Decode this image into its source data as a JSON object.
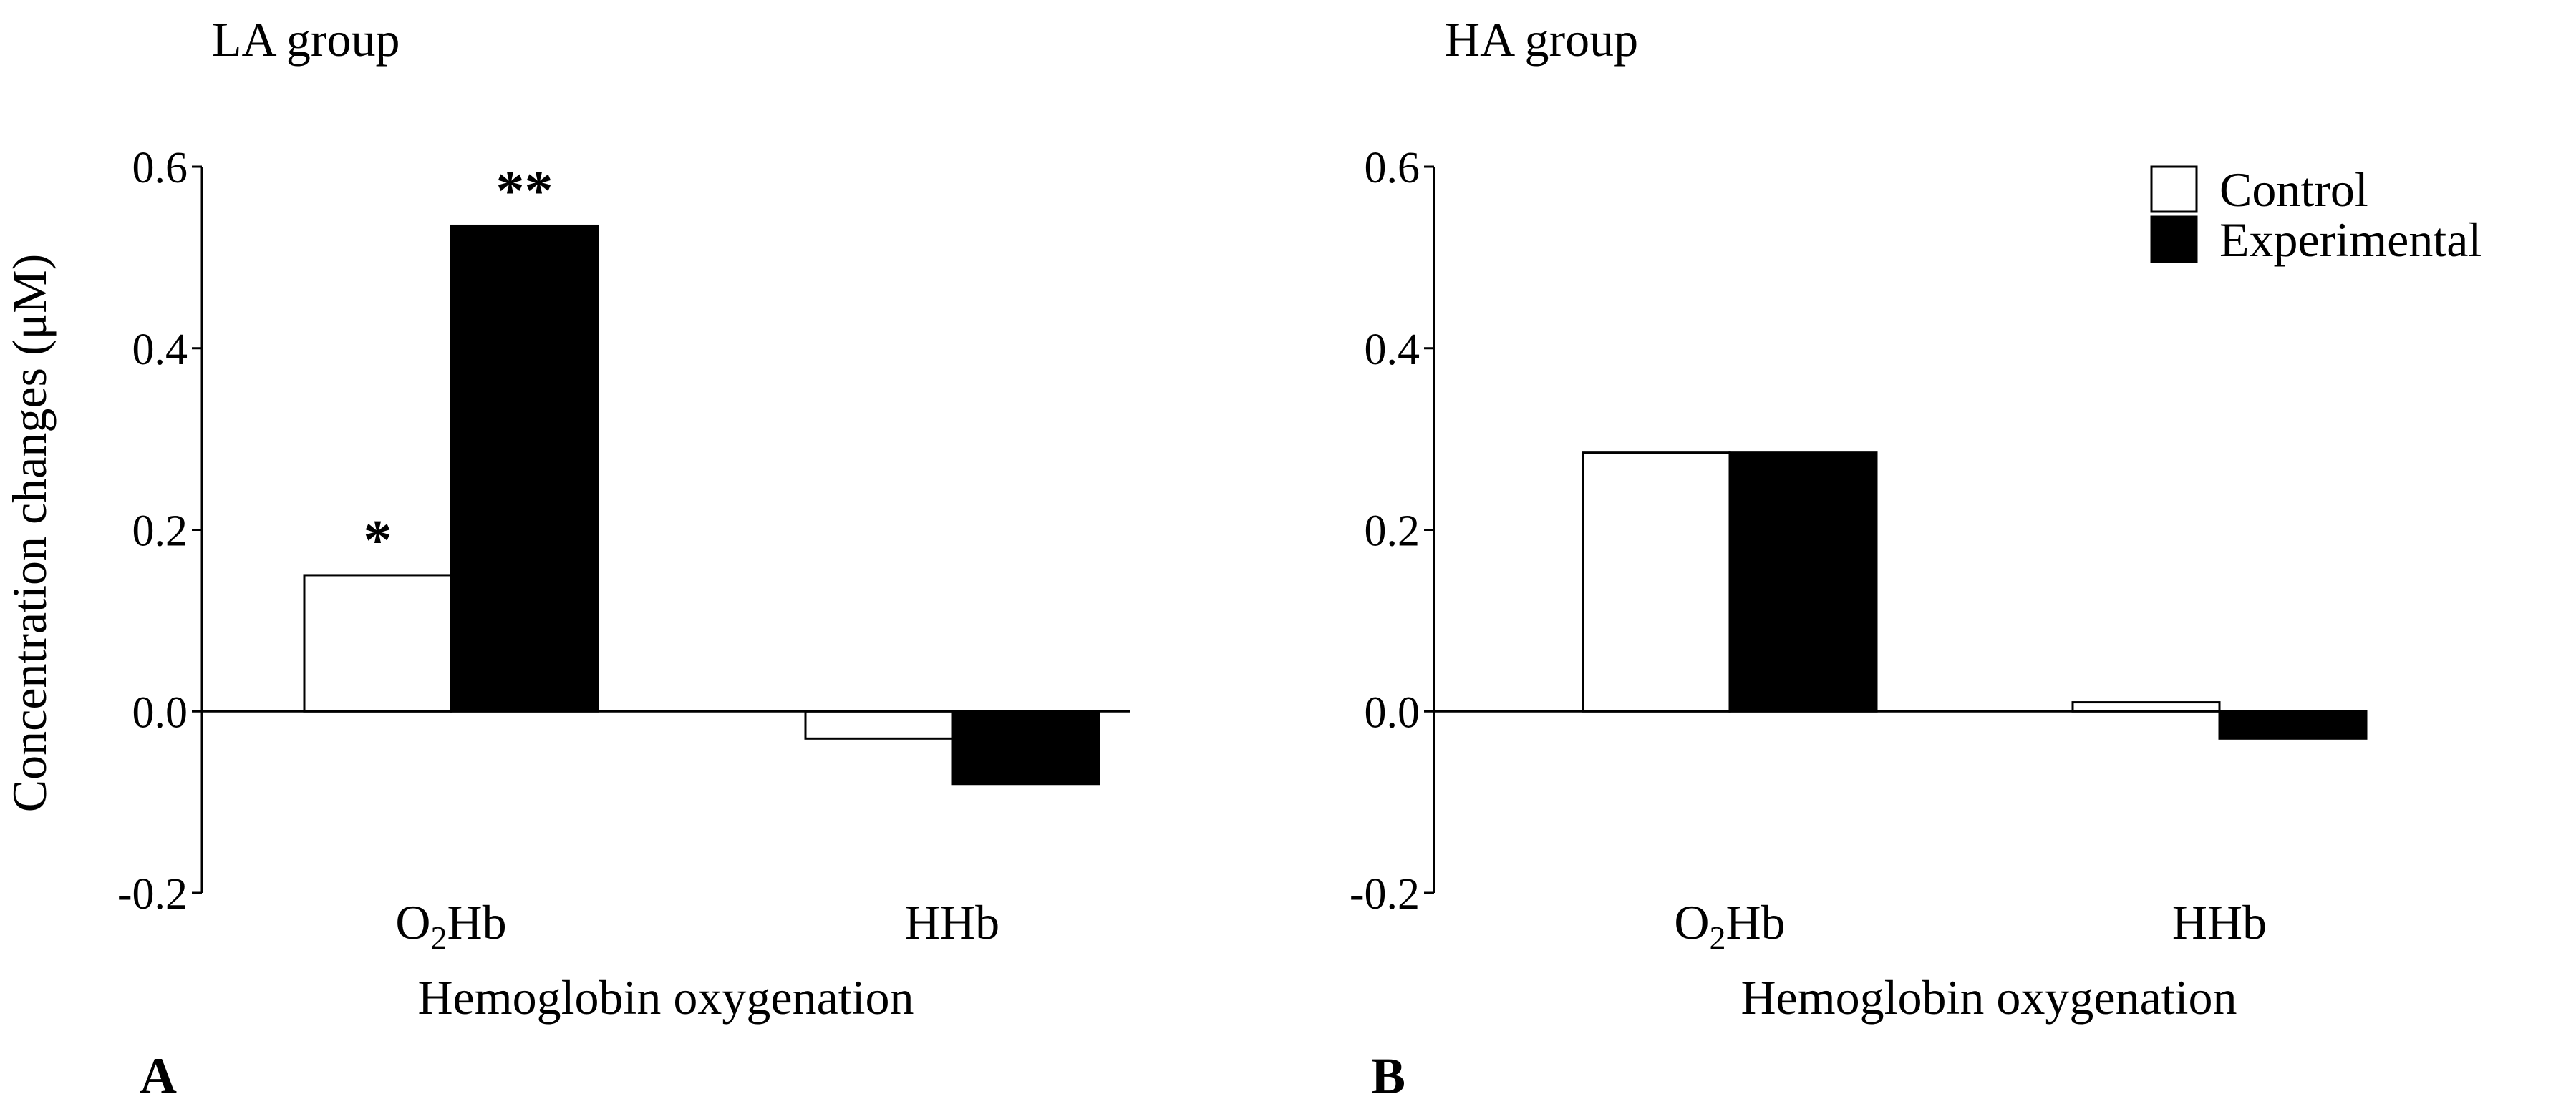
{
  "chart_data": [
    {
      "type": "bar",
      "title": "LA group",
      "panel_label": "A",
      "xlabel": "Hemoglobin oxygenation",
      "ylabel": "Concentration changes (μM)",
      "ylim": [
        -0.2,
        0.6
      ],
      "yticks": [
        "0.6",
        "0.4",
        "0.2",
        "0.0",
        "-0.2"
      ],
      "categories": [
        {
          "base": "O",
          "sub": "2",
          "rest": "Hb"
        },
        {
          "base": "HHb",
          "sub": "",
          "rest": ""
        }
      ],
      "series": [
        {
          "name": "Control",
          "color": "#ffffff",
          "values": [
            0.15,
            -0.03
          ]
        },
        {
          "name": "Experimental",
          "color": "#000000",
          "values": [
            0.535,
            -0.08
          ]
        }
      ],
      "annotations": [
        {
          "text": "*",
          "category": 0,
          "series": 0
        },
        {
          "text": "**",
          "category": 0,
          "series": 1
        }
      ],
      "legend": null
    },
    {
      "type": "bar",
      "title": "HA group",
      "panel_label": "B",
      "xlabel": "Hemoglobin oxygenation",
      "ylabel": "",
      "ylim": [
        -0.2,
        0.6
      ],
      "yticks": [
        "0.6",
        "0.4",
        "0.2",
        "0.0",
        "-0.2"
      ],
      "categories": [
        {
          "base": "O",
          "sub": "2",
          "rest": "Hb"
        },
        {
          "base": "HHb",
          "sub": "",
          "rest": ""
        }
      ],
      "series": [
        {
          "name": "Control",
          "color": "#ffffff",
          "values": [
            0.285,
            0.01
          ]
        },
        {
          "name": "Experimental",
          "color": "#000000",
          "values": [
            0.285,
            -0.03
          ]
        }
      ],
      "annotations": [],
      "legend": {
        "placement": "top-right",
        "entries": [
          "Control",
          "Experimental"
        ]
      }
    }
  ]
}
